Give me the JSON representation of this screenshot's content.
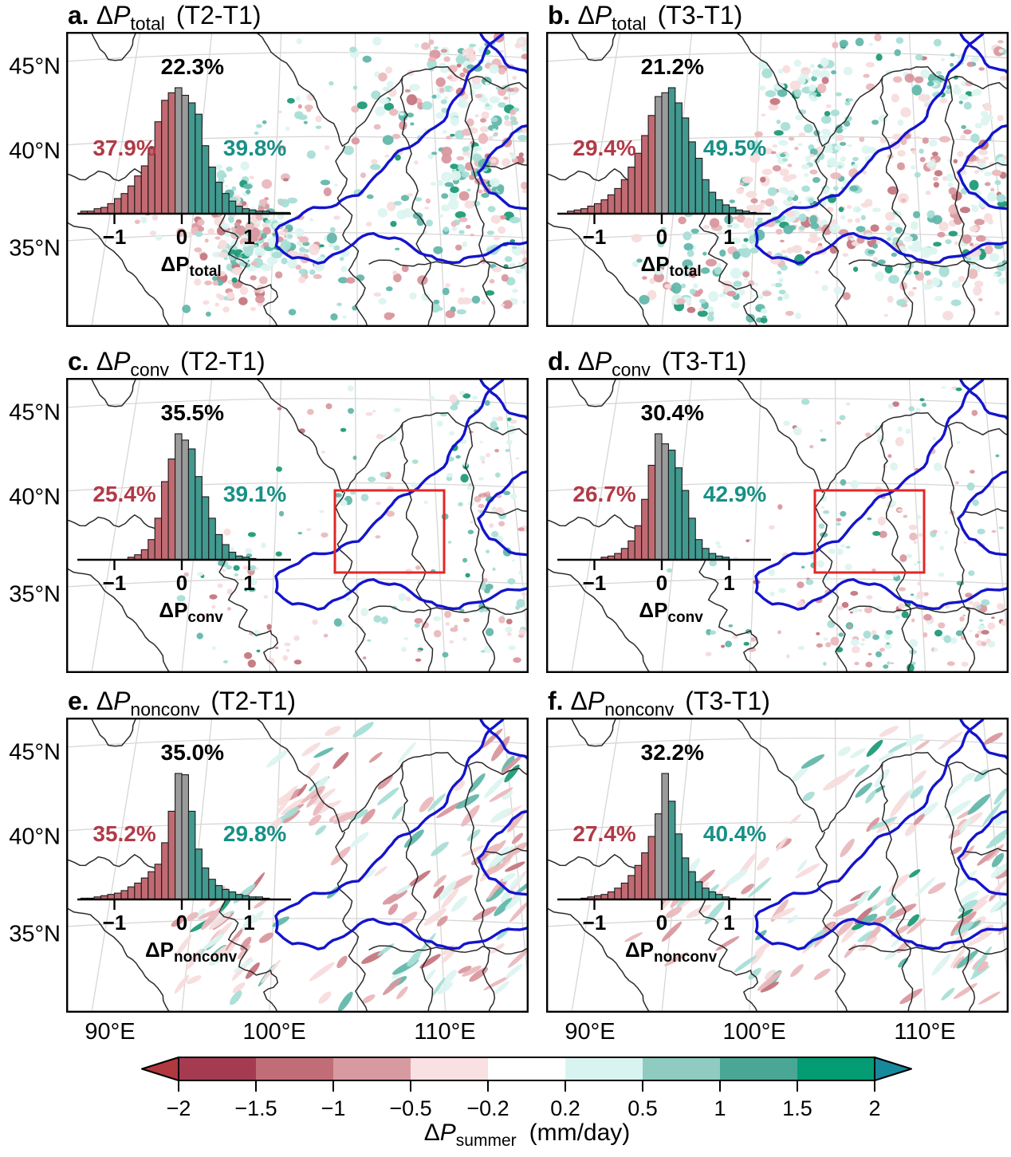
{
  "axes": {
    "lat_labels": [
      "45°N",
      "40°N",
      "35°N"
    ],
    "lon_labels": [
      "90°E",
      "100°E",
      "110°E"
    ],
    "hist_ticks": [
      "−1",
      "0",
      "1"
    ]
  },
  "panels": [
    {
      "letter": "a.",
      "symbol_delta": "Δ",
      "symbol_p": "P",
      "quantity": "total",
      "period": "(T2-T1)",
      "pct_neg": "37.9%",
      "pct_neu": "22.3%",
      "pct_pos": "39.8%",
      "xlabel_symbol": "ΔP",
      "xlabel_sub": "total",
      "red_box": false
    },
    {
      "letter": "b.",
      "symbol_delta": "Δ",
      "symbol_p": "P",
      "quantity": "total",
      "period": "(T3-T1)",
      "pct_neg": "29.4%",
      "pct_neu": "21.2%",
      "pct_pos": "49.5%",
      "xlabel_symbol": "ΔP",
      "xlabel_sub": "total",
      "red_box": false
    },
    {
      "letter": "c.",
      "symbol_delta": "Δ",
      "symbol_p": "P",
      "quantity": "conv",
      "period": "(T2-T1)",
      "pct_neg": "25.4%",
      "pct_neu": "35.5%",
      "pct_pos": "39.1%",
      "xlabel_symbol": "ΔP",
      "xlabel_sub": "conv",
      "red_box": true
    },
    {
      "letter": "d.",
      "symbol_delta": "Δ",
      "symbol_p": "P",
      "quantity": "conv",
      "period": "(T3-T1)",
      "pct_neg": "26.7%",
      "pct_neu": "30.4%",
      "pct_pos": "42.9%",
      "xlabel_symbol": "ΔP",
      "xlabel_sub": "conv",
      "red_box": true
    },
    {
      "letter": "e.",
      "symbol_delta": "Δ",
      "symbol_p": "P",
      "quantity": "nonconv",
      "period": "(T2-T1)",
      "pct_neg": "35.2%",
      "pct_neu": "35.0%",
      "pct_pos": "29.8%",
      "xlabel_symbol": "ΔP",
      "xlabel_sub": "nonconv",
      "red_box": false
    },
    {
      "letter": "f.",
      "symbol_delta": "Δ",
      "symbol_p": "P",
      "quantity": "nonconv",
      "period": "(T3-T1)",
      "pct_neg": "27.4%",
      "pct_neu": "32.2%",
      "pct_pos": "40.4%",
      "xlabel_symbol": "ΔP",
      "xlabel_sub": "nonconv",
      "red_box": false
    }
  ],
  "chart_data": [
    {
      "panel": "a",
      "type": "bar",
      "subtype": "histogram",
      "variable": "ΔP_total",
      "comparison": "T2-T1",
      "bin_width": 0.1,
      "first_bin_left": -1.5,
      "neg_heights": [
        0.02,
        0.02,
        0.04,
        0.05,
        0.08,
        0.12,
        0.16,
        0.22,
        0.3,
        0.38,
        0.52,
        0.73,
        0.9,
        0.96
      ],
      "neu_heights": [
        1.0,
        0.94
      ],
      "pos_heights": [
        0.88,
        0.79,
        0.54,
        0.37,
        0.25,
        0.16,
        0.1,
        0.06,
        0.04,
        0.03,
        0.02,
        0.02,
        0.01,
        0.01,
        0.01
      ],
      "negative_share_pct": 37.9,
      "near_zero_share_pct": 22.3,
      "positive_share_pct": 39.8,
      "x_ticks": [
        -1,
        0,
        1
      ],
      "x_range": [
        -1.55,
        1.62
      ]
    },
    {
      "panel": "b",
      "type": "bar",
      "subtype": "histogram",
      "variable": "ΔP_total",
      "comparison": "T3-T1",
      "bin_width": 0.1,
      "first_bin_left": -1.4,
      "neg_heights": [
        0.02,
        0.03,
        0.04,
        0.06,
        0.08,
        0.11,
        0.15,
        0.2,
        0.27,
        0.37,
        0.48,
        0.62,
        0.78
      ],
      "neu_heights": [
        0.93,
        0.96
      ],
      "pos_heights": [
        1.0,
        0.88,
        0.76,
        0.57,
        0.44,
        0.27,
        0.17,
        0.11,
        0.07,
        0.05,
        0.03,
        0.02,
        0.01
      ],
      "negative_share_pct": 29.4,
      "near_zero_share_pct": 21.2,
      "positive_share_pct": 49.5,
      "x_ticks": [
        -1,
        0,
        1
      ],
      "x_range": [
        -1.55,
        1.62
      ]
    },
    {
      "panel": "c",
      "type": "bar",
      "subtype": "histogram",
      "variable": "ΔP_conv",
      "comparison": "T2-T1",
      "bin_width": 0.1,
      "first_bin_left": -0.8,
      "neg_heights": [
        0.02,
        0.04,
        0.08,
        0.16,
        0.33,
        0.62,
        0.8
      ],
      "neu_heights": [
        1.0,
        0.95
      ],
      "pos_heights": [
        0.88,
        0.66,
        0.5,
        0.33,
        0.2,
        0.12,
        0.06,
        0.03,
        0.02,
        0.01
      ],
      "negative_share_pct": 25.4,
      "near_zero_share_pct": 35.5,
      "positive_share_pct": 39.1,
      "x_ticks": [
        -1,
        0,
        1
      ],
      "x_range": [
        -1.55,
        1.62
      ]
    },
    {
      "panel": "d",
      "type": "bar",
      "subtype": "histogram",
      "variable": "ΔP_conv",
      "comparison": "T3-T1",
      "bin_width": 0.1,
      "first_bin_left": -0.9,
      "neg_heights": [
        0.02,
        0.03,
        0.05,
        0.09,
        0.15,
        0.27,
        0.48,
        0.75
      ],
      "neu_heights": [
        1.0,
        0.92
      ],
      "pos_heights": [
        0.87,
        0.73,
        0.55,
        0.33,
        0.16,
        0.09,
        0.05,
        0.03,
        0.02
      ],
      "negative_share_pct": 26.7,
      "near_zero_share_pct": 30.4,
      "positive_share_pct": 42.9,
      "x_ticks": [
        -1,
        0,
        1
      ],
      "x_range": [
        -1.55,
        1.62
      ]
    },
    {
      "panel": "e",
      "type": "bar",
      "subtype": "histogram",
      "variable": "ΔP_nonconv",
      "comparison": "T2-T1",
      "bin_width": 0.1,
      "first_bin_left": -1.5,
      "neg_heights": [
        0.01,
        0.01,
        0.02,
        0.03,
        0.04,
        0.05,
        0.07,
        0.1,
        0.13,
        0.17,
        0.22,
        0.28,
        0.45,
        0.7
      ],
      "neu_heights": [
        1.0,
        0.99
      ],
      "pos_heights": [
        0.7,
        0.4,
        0.25,
        0.16,
        0.11,
        0.08,
        0.06,
        0.04,
        0.03,
        0.02,
        0.02,
        0.01
      ],
      "negative_share_pct": 35.2,
      "near_zero_share_pct": 35.0,
      "positive_share_pct": 29.8,
      "x_ticks": [
        -1,
        0,
        1
      ],
      "x_range": [
        -1.55,
        1.62
      ]
    },
    {
      "panel": "f",
      "type": "bar",
      "subtype": "histogram",
      "variable": "ΔP_nonconv",
      "comparison": "T3-T1",
      "bin_width": 0.1,
      "first_bin_left": -1.2,
      "neg_heights": [
        0.01,
        0.02,
        0.03,
        0.04,
        0.06,
        0.09,
        0.13,
        0.19,
        0.27,
        0.37,
        0.5
      ],
      "neu_heights": [
        0.68,
        1.0
      ],
      "pos_heights": [
        0.78,
        0.52,
        0.33,
        0.22,
        0.14,
        0.09,
        0.06,
        0.04,
        0.02,
        0.01
      ],
      "negative_share_pct": 27.4,
      "near_zero_share_pct": 32.2,
      "positive_share_pct": 40.4,
      "x_ticks": [
        -1,
        0,
        1
      ],
      "x_range": [
        -1.55,
        1.62
      ]
    }
  ],
  "colorbar": {
    "tick_labels": [
      "−2",
      "−1.5",
      "−1",
      "−0.5",
      "−0.2",
      "0.2",
      "0.5",
      "1",
      "1.5",
      "2"
    ],
    "segment_colors": [
      "#a43b51",
      "#c06d77",
      "#d89aa1",
      "#f9e0e2",
      "#ffffff",
      "#d9f4f0",
      "#8fcbc1",
      "#4aa795",
      "#049c72"
    ],
    "arrow_left_color": "#b23840",
    "arrow_right_color": "#17899c",
    "label_delta": "Δ",
    "label_p": "P",
    "label_sub": "summer",
    "label_units": "(mm/day)"
  },
  "colors": {
    "hist_neg": "#c16a72",
    "hist_neu": "#9b9b9b",
    "hist_pos": "#41998f",
    "hist_outline": "#1a1a1a",
    "pct_neg": "#b13a47",
    "pct_pos": "#189086",
    "pct_neu": "#000000",
    "basin_line": "#1414cc",
    "border_line": "#2a2a2a",
    "graticule": "#d6d6d6",
    "red_box": "#e32726",
    "frame": "#000000",
    "speckle_pinks": [
      "#f7dcdd",
      "#eab9bd",
      "#d9989f",
      "#c57780"
    ],
    "speckle_teals": [
      "#dcf4f0",
      "#a8ded6",
      "#63b7ab",
      "#1f9b77"
    ]
  }
}
